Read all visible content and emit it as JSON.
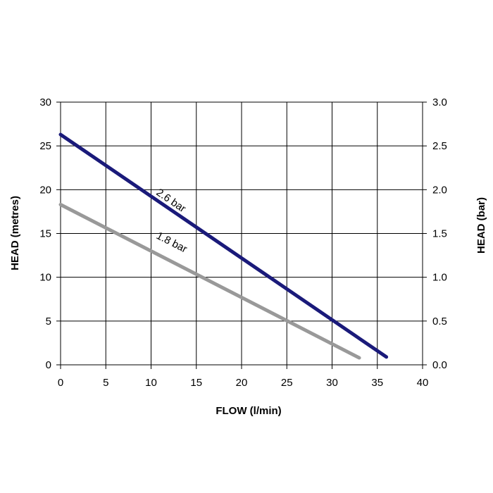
{
  "chart_data": {
    "type": "line",
    "xlabel": "FLOW (l/min)",
    "ylabel": "HEAD (metres)",
    "y2label": "HEAD (bar)",
    "xlim": [
      0,
      40
    ],
    "ylim": [
      0,
      30
    ],
    "y2lim": [
      0,
      3
    ],
    "x_ticks": [
      "0",
      "5",
      "10",
      "15",
      "20",
      "25",
      "30",
      "35",
      "40"
    ],
    "y_ticks": [
      "0",
      "5",
      "10",
      "15",
      "20",
      "25",
      "30"
    ],
    "y2_ticks": [
      "0.0",
      "0.5",
      "1.0",
      "1.5",
      "2.0",
      "2.5",
      "3.0"
    ],
    "grid": true,
    "series": [
      {
        "name": "2.6 bar",
        "color": "#1a1a7a",
        "x": [
          0,
          36
        ],
        "y": [
          26.3,
          0.9
        ],
        "label_at": [
          10.5,
          19.5
        ]
      },
      {
        "name": "1.8 bar",
        "color": "#999999",
        "x": [
          0,
          33
        ],
        "y": [
          18.3,
          0.8
        ],
        "label_at": [
          10.5,
          14.5
        ]
      }
    ]
  }
}
